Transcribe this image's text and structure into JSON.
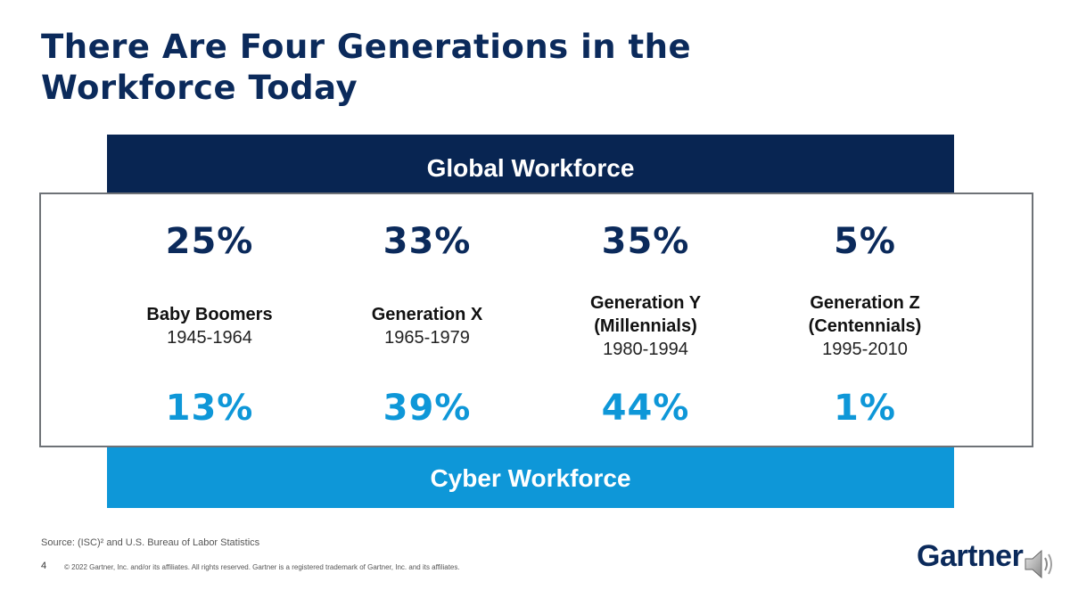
{
  "title": "There Are Four Generations in the Workforce Today",
  "global_band_label": "Global Workforce",
  "cyber_band_label": "Cyber Workforce",
  "generations": [
    {
      "name_line1": "Baby Boomers",
      "name_line2": "",
      "years": "1945-1964",
      "global_pct": "25%",
      "cyber_pct": "13%"
    },
    {
      "name_line1": "Generation X",
      "name_line2": "",
      "years": "1965-1979",
      "global_pct": "33%",
      "cyber_pct": "39%"
    },
    {
      "name_line1": "Generation Y",
      "name_line2": "(Millennials)",
      "years": "1980-1994",
      "global_pct": "35%",
      "cyber_pct": "44%"
    },
    {
      "name_line1": "Generation Z",
      "name_line2": "(Centennials)",
      "years": "1995-2010",
      "global_pct": "5%",
      "cyber_pct": "1%"
    }
  ],
  "footer": {
    "source": "Source: (ISC)² and U.S. Bureau of Labor Statistics",
    "page_number": "4",
    "copyright": "© 2022 Gartner, Inc. and/or its affiliates. All rights reserved. Gartner is a registered trademark of Gartner, Inc. and its affiliates.",
    "logo": "Gartner"
  },
  "colors": {
    "navy": "#082552",
    "cyan": "#0e97d8",
    "panel_border": "#6e7277"
  },
  "icons": {
    "audio": "speaker-icon"
  }
}
